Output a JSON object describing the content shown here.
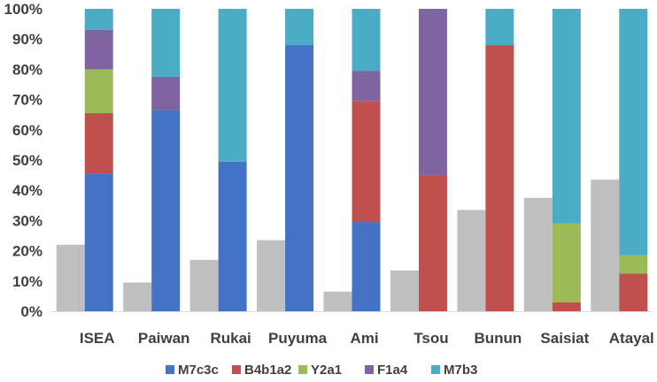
{
  "chart_data": {
    "type": "bar",
    "stacked": true,
    "percent": true,
    "categories": [
      "ISEA",
      "Paiwan",
      "Rukai",
      "Puyuma",
      "Ami",
      "Tsou",
      "Bunun",
      "Saisiat",
      "Atayal"
    ],
    "y_ticks": [
      "0%",
      "10%",
      "20%",
      "30%",
      "40%",
      "50%",
      "60%",
      "70%",
      "80%",
      "90%",
      "100%"
    ],
    "ylim": [
      0,
      100
    ],
    "grid": false,
    "legend_position": "bottom",
    "unlabeled_gray_bars": {
      "color": "#bfbfbf",
      "values": [
        22,
        9.5,
        17,
        23.5,
        6.5,
        13.5,
        33.5,
        37.5,
        43.5
      ]
    },
    "series": [
      {
        "name": "M7c3c",
        "color": "#4472c4",
        "values": [
          45.5,
          66.5,
          49.5,
          88,
          29.5,
          0,
          0,
          0,
          0
        ]
      },
      {
        "name": "B4b1a2",
        "color": "#c0504d",
        "values": [
          20,
          0,
          0,
          0,
          40,
          45,
          88,
          3,
          12.5
        ]
      },
      {
        "name": "Y2a1",
        "color": "#9bbb59",
        "values": [
          14.5,
          0,
          0,
          0,
          0,
          0,
          0,
          26,
          6
        ]
      },
      {
        "name": "F1a4",
        "color": "#8064a2",
        "values": [
          13,
          11,
          0,
          0,
          10,
          55,
          0,
          0,
          0
        ]
      },
      {
        "name": "M7b3",
        "color": "#4bacc6",
        "values": [
          7,
          22.5,
          50.5,
          12,
          20.5,
          0,
          12,
          71,
          81.5
        ]
      }
    ]
  }
}
